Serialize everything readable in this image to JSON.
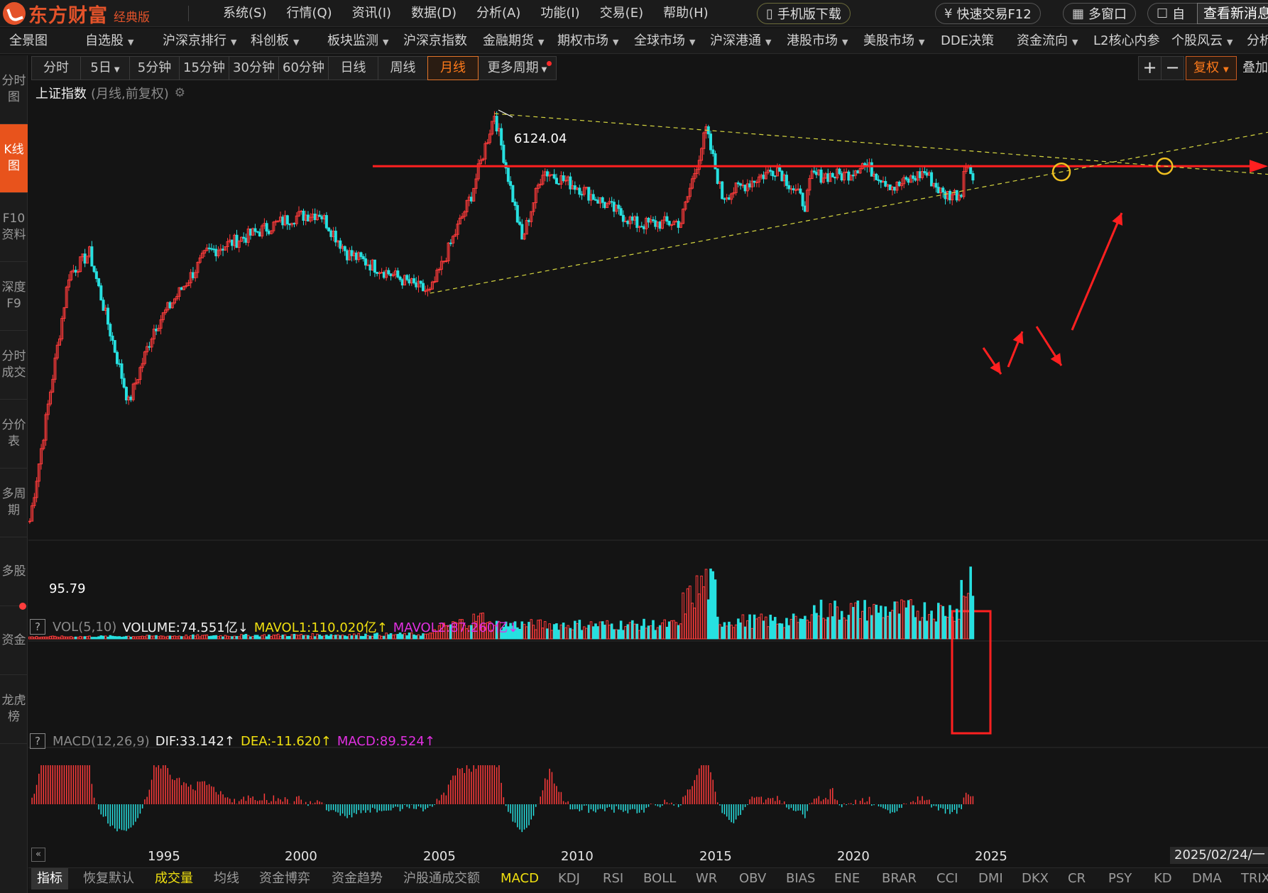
{
  "app": {
    "brand": "东方财富",
    "edition": "经典版",
    "menu": [
      "系统(S)",
      "行情(Q)",
      "资讯(I)",
      "数据(D)",
      "分析(A)",
      "功能(I)",
      "交易(E)",
      "帮助(H)"
    ],
    "mobile_download": "手机版下载",
    "quick_trade": "快速交易F12",
    "multi_window": "多窗口",
    "custom_partial": "自",
    "news_button": "查看新消息"
  },
  "navbar": {
    "items": [
      "全景图",
      "自选股",
      "沪深京排行",
      "科创板",
      "板块监测",
      "沪深京指数",
      "金融期货",
      "期权市场",
      "全球市场",
      "沪深港通",
      "港股市场",
      "美股市场",
      "DDE决策",
      "资金流向",
      "L2核心内参",
      "个股风云",
      "分析"
    ]
  },
  "sidebar": {
    "items": [
      "分时图",
      "K线图",
      "F10资料",
      "深度F9",
      "分时成交",
      "分价表",
      "多周期",
      "多股",
      "资金",
      "龙虎榜"
    ]
  },
  "periods": {
    "items": [
      "分时",
      "5日",
      "5分钟",
      "15分钟",
      "30分钟",
      "60分钟",
      "日线",
      "周线",
      "月线",
      "更多周期"
    ],
    "selected": "月线"
  },
  "tools": {
    "plus": "+",
    "minus": "−",
    "fuquan": "复权",
    "overlay": "叠加"
  },
  "chart": {
    "name": "上证指数",
    "subtitle": "(月线,前复权)",
    "high_label": "6124.04",
    "low_label": "95.79"
  },
  "volume_panel": {
    "name": "VOL(5,10)",
    "volume": "VOLUME:74.551亿",
    "volume_arrow": "↓",
    "mavol1": "MAVOL1:110.020亿",
    "mavol1_arrow": "↑",
    "mavol2": "MAVOL2:87.260亿",
    "mavol2_arrow": "↓"
  },
  "macd_panel": {
    "name": "MACD(12,26,9)",
    "dif": "DIF:33.142",
    "dif_arrow": "↑",
    "dea": "DEA:-11.620",
    "dea_arrow": "↑",
    "macd": "MACD:89.524",
    "macd_arrow": "↑"
  },
  "date_axis": {
    "years": [
      "1995",
      "2000",
      "2005",
      "2010",
      "2015",
      "2020",
      "2025"
    ],
    "current_date": "2025/02/24/一"
  },
  "bottom_tabs": {
    "items": [
      "指标",
      "恢复默认",
      "成交量",
      "均线",
      "资金博弈",
      "资金趋势",
      "沪股通成交额",
      "MACD",
      "KDJ",
      "RSI",
      "BOLL",
      "WR",
      "OBV",
      "BIAS",
      "ENE",
      "BRAR",
      "CCI",
      "DMI",
      "DKX",
      "CR",
      "PSY",
      "KD",
      "DMA",
      "TRIX"
    ],
    "selected": "指标",
    "highlighted": [
      "成交量",
      "MACD"
    ]
  },
  "chart_data": {
    "type": "candlestick",
    "period": "monthly",
    "x": [
      "1990-12",
      "1992-05",
      "1993-02",
      "1994-07",
      "1995-06",
      "1997-05",
      "2000-06",
      "2001-06",
      "2002-06",
      "2005-06",
      "2006-12",
      "2007-10",
      "2008-10",
      "2009-07",
      "2010-11",
      "2012-12",
      "2014-07",
      "2015-06",
      "2016-01",
      "2018-01",
      "2019-01",
      "2019-04",
      "2020-07",
      "2021-02",
      "2022-04",
      "2023-05",
      "2024-01",
      "2024-09",
      "2024-10",
      "2025-02"
    ],
    "close": [
      100,
      1200,
      1500,
      330,
      700,
      1500,
      2150,
      2250,
      1500,
      1000,
      2700,
      6124,
      1700,
      3450,
      2900,
      2000,
      2050,
      5178,
      2650,
      3550,
      2450,
      3270,
      3300,
      3700,
      2900,
      3400,
      2700,
      2730,
      3670,
      3350
    ],
    "price_ticks_shown": [
      "95.79",
      "6124.04"
    ],
    "annotations": {
      "horizontal_resistance": 3600,
      "upper_trendline": {
        "from": [
          "2007-10",
          6124
        ],
        "to": [
          "2015-06",
          5178
        ]
      },
      "lower_trendline": {
        "from": [
          "2005-06",
          998
        ],
        "to": [
          "2024-01",
          2700
        ]
      },
      "projected_path": "down to lower trendline, rebound to breakout near upper trendline intersection, then sharp rise"
    },
    "volume_highlight": "2024-09 to 2025-02 volume spike (red box)"
  },
  "colors": {
    "up": "#ff3b3b",
    "down": "#27e0e0",
    "accent": "#e8531c",
    "annotation_red": "#ff2020",
    "trendline_yellow": "#d6d640",
    "circle_yellow": "#f0c020"
  }
}
